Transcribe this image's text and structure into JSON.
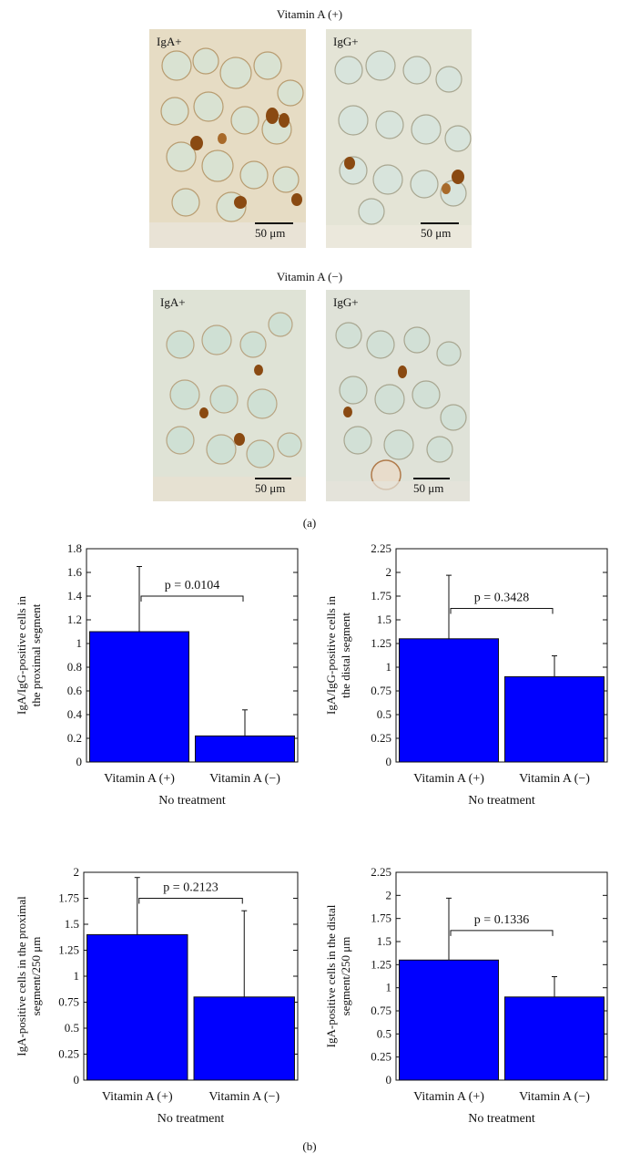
{
  "figure": {
    "panel_a": {
      "label": "(a)",
      "groups": [
        {
          "title": "Vitamin A (+)",
          "images": [
            {
              "label": "IgA+",
              "scale": "50 μm"
            },
            {
              "label": "IgG+",
              "scale": "50 μm"
            }
          ]
        },
        {
          "title": "Vitamin A (−)",
          "images": [
            {
              "label": "IgA+",
              "scale": "50 μm"
            },
            {
              "label": "IgG+",
              "scale": "50 μm"
            }
          ]
        }
      ]
    },
    "panel_b": {
      "label": "(b)"
    }
  },
  "chart_data": [
    {
      "type": "bar",
      "categories": [
        "Vitamin A (+)",
        "Vitamin A (−)"
      ],
      "values": [
        1.1,
        0.22
      ],
      "error_upper": [
        1.65,
        0.44
      ],
      "ylabel": [
        "IgA/IgG-positive cells in",
        "the proximal segment"
      ],
      "xlabel": "No treatment",
      "ylim": [
        0,
        1.8
      ],
      "yticks": [
        "0",
        "0.2",
        "0.4",
        "0.6",
        "0.8",
        "1",
        "1.2",
        "1.4",
        "1.6",
        "1.8"
      ],
      "annotation": "p = 0.0104",
      "bracket_y": 1.4,
      "bar_color": "#0000ff"
    },
    {
      "type": "bar",
      "categories": [
        "Vitamin A (+)",
        "Vitamin A (−)"
      ],
      "values": [
        1.3,
        0.9
      ],
      "error_upper": [
        1.97,
        1.12
      ],
      "ylabel": [
        "IgA/IgG-positive cells in",
        "the distal segment"
      ],
      "xlabel": "No treatment",
      "ylim": [
        0,
        2.25
      ],
      "yticks": [
        "0",
        "0.25",
        "0.5",
        "0.75",
        "1",
        "1.25",
        "1.5",
        "1.75",
        "2",
        "2.25"
      ],
      "annotation": "p = 0.3428",
      "bracket_y": 1.62,
      "bar_color": "#0000ff"
    },
    {
      "type": "bar",
      "categories": [
        "Vitamin A (+)",
        "Vitamin A (−)"
      ],
      "values": [
        1.4,
        0.8
      ],
      "error_upper": [
        1.95,
        1.63
      ],
      "ylabel": [
        "IgA-positive cells in the proximal",
        "segment/250 μm"
      ],
      "xlabel": "No treatment",
      "ylim": [
        0,
        2
      ],
      "yticks": [
        "0",
        "0.25",
        "0.5",
        "0.75",
        "1",
        "1.25",
        "1.5",
        "1.75",
        "2"
      ],
      "annotation": "p = 0.2123",
      "bracket_y": 1.75,
      "bar_color": "#0000ff"
    },
    {
      "type": "bar",
      "categories": [
        "Vitamin A (+)",
        "Vitamin A (−)"
      ],
      "values": [
        1.3,
        0.9
      ],
      "error_upper": [
        1.97,
        1.12
      ],
      "ylabel": [
        "IgA-positive cells in the distal",
        "segment/250 μm"
      ],
      "xlabel": "No treatment",
      "ylim": [
        0,
        2.25
      ],
      "yticks": [
        "0",
        "0.25",
        "0.5",
        "0.75",
        "1",
        "1.25",
        "1.5",
        "1.75",
        "2",
        "2.25"
      ],
      "annotation": "p = 0.1336",
      "bracket_y": 1.62,
      "bar_color": "#0000ff"
    }
  ]
}
